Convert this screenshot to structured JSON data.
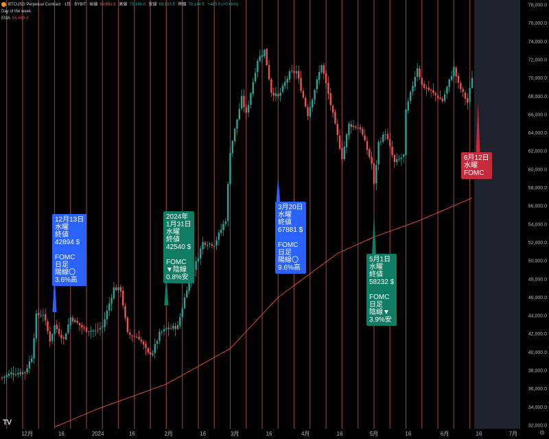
{
  "header": {
    "symbol": "BTCUSD Perpetual Contract · 1日 · BYBIT",
    "open_label": "始値",
    "open_value": "69,681.5",
    "high_label": "高値",
    "high_value": "70,196.0",
    "low_label": "安値",
    "low_value": "69,193.5",
    "close_label": "終値",
    "close_value": "70,144.5",
    "change": "+463.0 (+0.66%)",
    "indicator_1": "Day of the week",
    "indicator_2_name": "EMA",
    "indicator_2_value": "56,869.4"
  },
  "colors": {
    "background": "#000000",
    "future_zone": "#1e222d",
    "day_line": "#8a3a48",
    "up_candle": "#26a69a",
    "down_candle": "#ef5350",
    "ema": "#e0453a",
    "axis_text": "#b2b5be",
    "callout_blue": "#2962ff",
    "callout_green": "#0f7c63",
    "callout_red": "#c62b3b"
  },
  "callouts": [
    {
      "text": "12月13日\n水曜\n終値\n42894 $\n\nFOMC\n日足\n陽線〇\n3.6%高",
      "color": "blue"
    },
    {
      "text": "2024年\n1月31日\n水曜\n終値\n42540 $\n\nFOMC\n▼陰線\n0.8%安",
      "color": "green"
    },
    {
      "text": "3月20日\n水曜\n終値\n67881 $\n\nFOMC\n日足\n陽線〇\n9.6%高",
      "color": "blue"
    },
    {
      "text": "5月1日\n水曜\n終値\n58232 $\n\nFOMC\n日足\n陰線▼\n3.9%安",
      "color": "green"
    },
    {
      "text": "6月12日\n水曜\nFOMC",
      "color": "red"
    }
  ],
  "x_axis_labels": [
    "12月",
    "16",
    "2024",
    "16",
    "2月",
    "16",
    "3月",
    "16",
    "4月",
    "16",
    "5月",
    "16",
    "6月",
    "16",
    "7月"
  ],
  "logo_text": "TV",
  "settings_icon": "gear-icon",
  "settings_glyph": "⚙",
  "chart_data": {
    "type": "candlestick",
    "title": "BTCUSD Perpetual Contract · 1日 · BYBIT",
    "y_axis": {
      "side": "right",
      "ylim": [
        31800,
        78200
      ],
      "ticks": [
        32000,
        34000,
        36000,
        38000,
        40000,
        42000,
        44000,
        46000,
        48000,
        50000,
        52000,
        54000,
        56000,
        58000,
        60000,
        62000,
        64000,
        66000,
        68000,
        70000,
        72000,
        74000,
        76000,
        78000
      ],
      "tick_labels": [
        "32,000.0",
        "34,000.0",
        "36,000.0",
        "38,000.0",
        "40,000.0",
        "42,000.0",
        "44,000.0",
        "46,000.0",
        "48,000.0",
        "50,000.0",
        "52,000.0",
        "54,000.0",
        "56,000.0",
        "58,000.0",
        "60,000.0",
        "62,000.0",
        "64,000.0",
        "66,000.0",
        "68,000.0",
        "70,000.0",
        "72,000.0",
        "74,000.0",
        "76,000.0",
        "78,000.0"
      ]
    },
    "x_axis": {
      "start_date": "2023-11-20",
      "end_date": "2024-07-01",
      "ticks": [
        "2023-12-01",
        "2023-12-16",
        "2024-01-01",
        "2024-01-16",
        "2024-02-01",
        "2024-02-16",
        "2024-03-01",
        "2024-03-16",
        "2024-04-01",
        "2024-04-16",
        "2024-05-01",
        "2024-05-16",
        "2024-06-01",
        "2024-06-16",
        "2024-07-01"
      ]
    },
    "last_candle_date": "2024-06-13",
    "wednesday_lines": "every Wednesday from 2023-11-22 through 2024-06-12",
    "close_keypoints": [
      [
        "2023-11-20",
        37200
      ],
      [
        "2023-11-24",
        37700
      ],
      [
        "2023-11-30",
        37800
      ],
      [
        "2023-12-03",
        39500
      ],
      [
        "2023-12-05",
        44000
      ],
      [
        "2023-12-08",
        44200
      ],
      [
        "2023-12-11",
        41300
      ],
      [
        "2023-12-13",
        42894
      ],
      [
        "2023-12-17",
        41400
      ],
      [
        "2023-12-20",
        43800
      ],
      [
        "2023-12-26",
        42500
      ],
      [
        "2023-12-31",
        42300
      ],
      [
        "2024-01-03",
        42800
      ],
      [
        "2024-01-08",
        47000
      ],
      [
        "2024-01-11",
        46800
      ],
      [
        "2024-01-14",
        42000
      ],
      [
        "2024-01-19",
        41600
      ],
      [
        "2024-01-23",
        39800
      ],
      [
        "2024-01-25",
        40000
      ],
      [
        "2024-01-28",
        42000
      ],
      [
        "2024-01-31",
        42540
      ],
      [
        "2024-02-05",
        42800
      ],
      [
        "2024-02-09",
        47000
      ],
      [
        "2024-02-13",
        49800
      ],
      [
        "2024-02-16",
        52000
      ],
      [
        "2024-02-21",
        51800
      ],
      [
        "2024-02-26",
        54500
      ],
      [
        "2024-02-28",
        62000
      ],
      [
        "2024-03-04",
        67800
      ],
      [
        "2024-03-06",
        66000
      ],
      [
        "2024-03-11",
        72000
      ],
      [
        "2024-03-14",
        73000
      ],
      [
        "2024-03-17",
        68500
      ],
      [
        "2024-03-20",
        67881
      ],
      [
        "2024-03-25",
        70500
      ],
      [
        "2024-03-28",
        70700
      ],
      [
        "2024-04-02",
        66000
      ],
      [
        "2024-04-08",
        71500
      ],
      [
        "2024-04-12",
        67100
      ],
      [
        "2024-04-17",
        61300
      ],
      [
        "2024-04-20",
        64900
      ],
      [
        "2024-04-25",
        64500
      ],
      [
        "2024-04-30",
        60600
      ],
      [
        "2024-05-01",
        58232
      ],
      [
        "2024-05-03",
        62900
      ],
      [
        "2024-05-06",
        64000
      ],
      [
        "2024-05-10",
        60700
      ],
      [
        "2024-05-14",
        61500
      ],
      [
        "2024-05-15",
        66300
      ],
      [
        "2024-05-20",
        71200
      ],
      [
        "2024-05-22",
        69200
      ],
      [
        "2024-05-26",
        68500
      ],
      [
        "2024-05-31",
        67500
      ],
      [
        "2024-06-05",
        71100
      ],
      [
        "2024-06-07",
        69300
      ],
      [
        "2024-06-11",
        67300
      ],
      [
        "2024-06-13",
        70144
      ]
    ],
    "ema_keypoints": [
      [
        "2023-12-13",
        31800
      ],
      [
        "2024-01-01",
        33800
      ],
      [
        "2024-01-31",
        36500
      ],
      [
        "2024-02-28",
        40400
      ],
      [
        "2024-03-20",
        46000
      ],
      [
        "2024-04-15",
        50800
      ],
      [
        "2024-05-01",
        52600
      ],
      [
        "2024-05-20",
        54300
      ],
      [
        "2024-06-13",
        56869
      ]
    ],
    "annotations": [
      {
        "date": "2023-12-13",
        "close": 42894,
        "event": "FOMC",
        "direction": "up",
        "change_pct": 3.6
      },
      {
        "date": "2024-01-31",
        "close": 42540,
        "event": "FOMC",
        "direction": "down",
        "change_pct": -0.8
      },
      {
        "date": "2024-03-20",
        "close": 67881,
        "event": "FOMC",
        "direction": "up",
        "change_pct": 9.6
      },
      {
        "date": "2024-05-01",
        "close": 58232,
        "event": "FOMC",
        "direction": "down",
        "change_pct": -3.9
      },
      {
        "date": "2024-06-12",
        "event": "FOMC"
      }
    ]
  }
}
